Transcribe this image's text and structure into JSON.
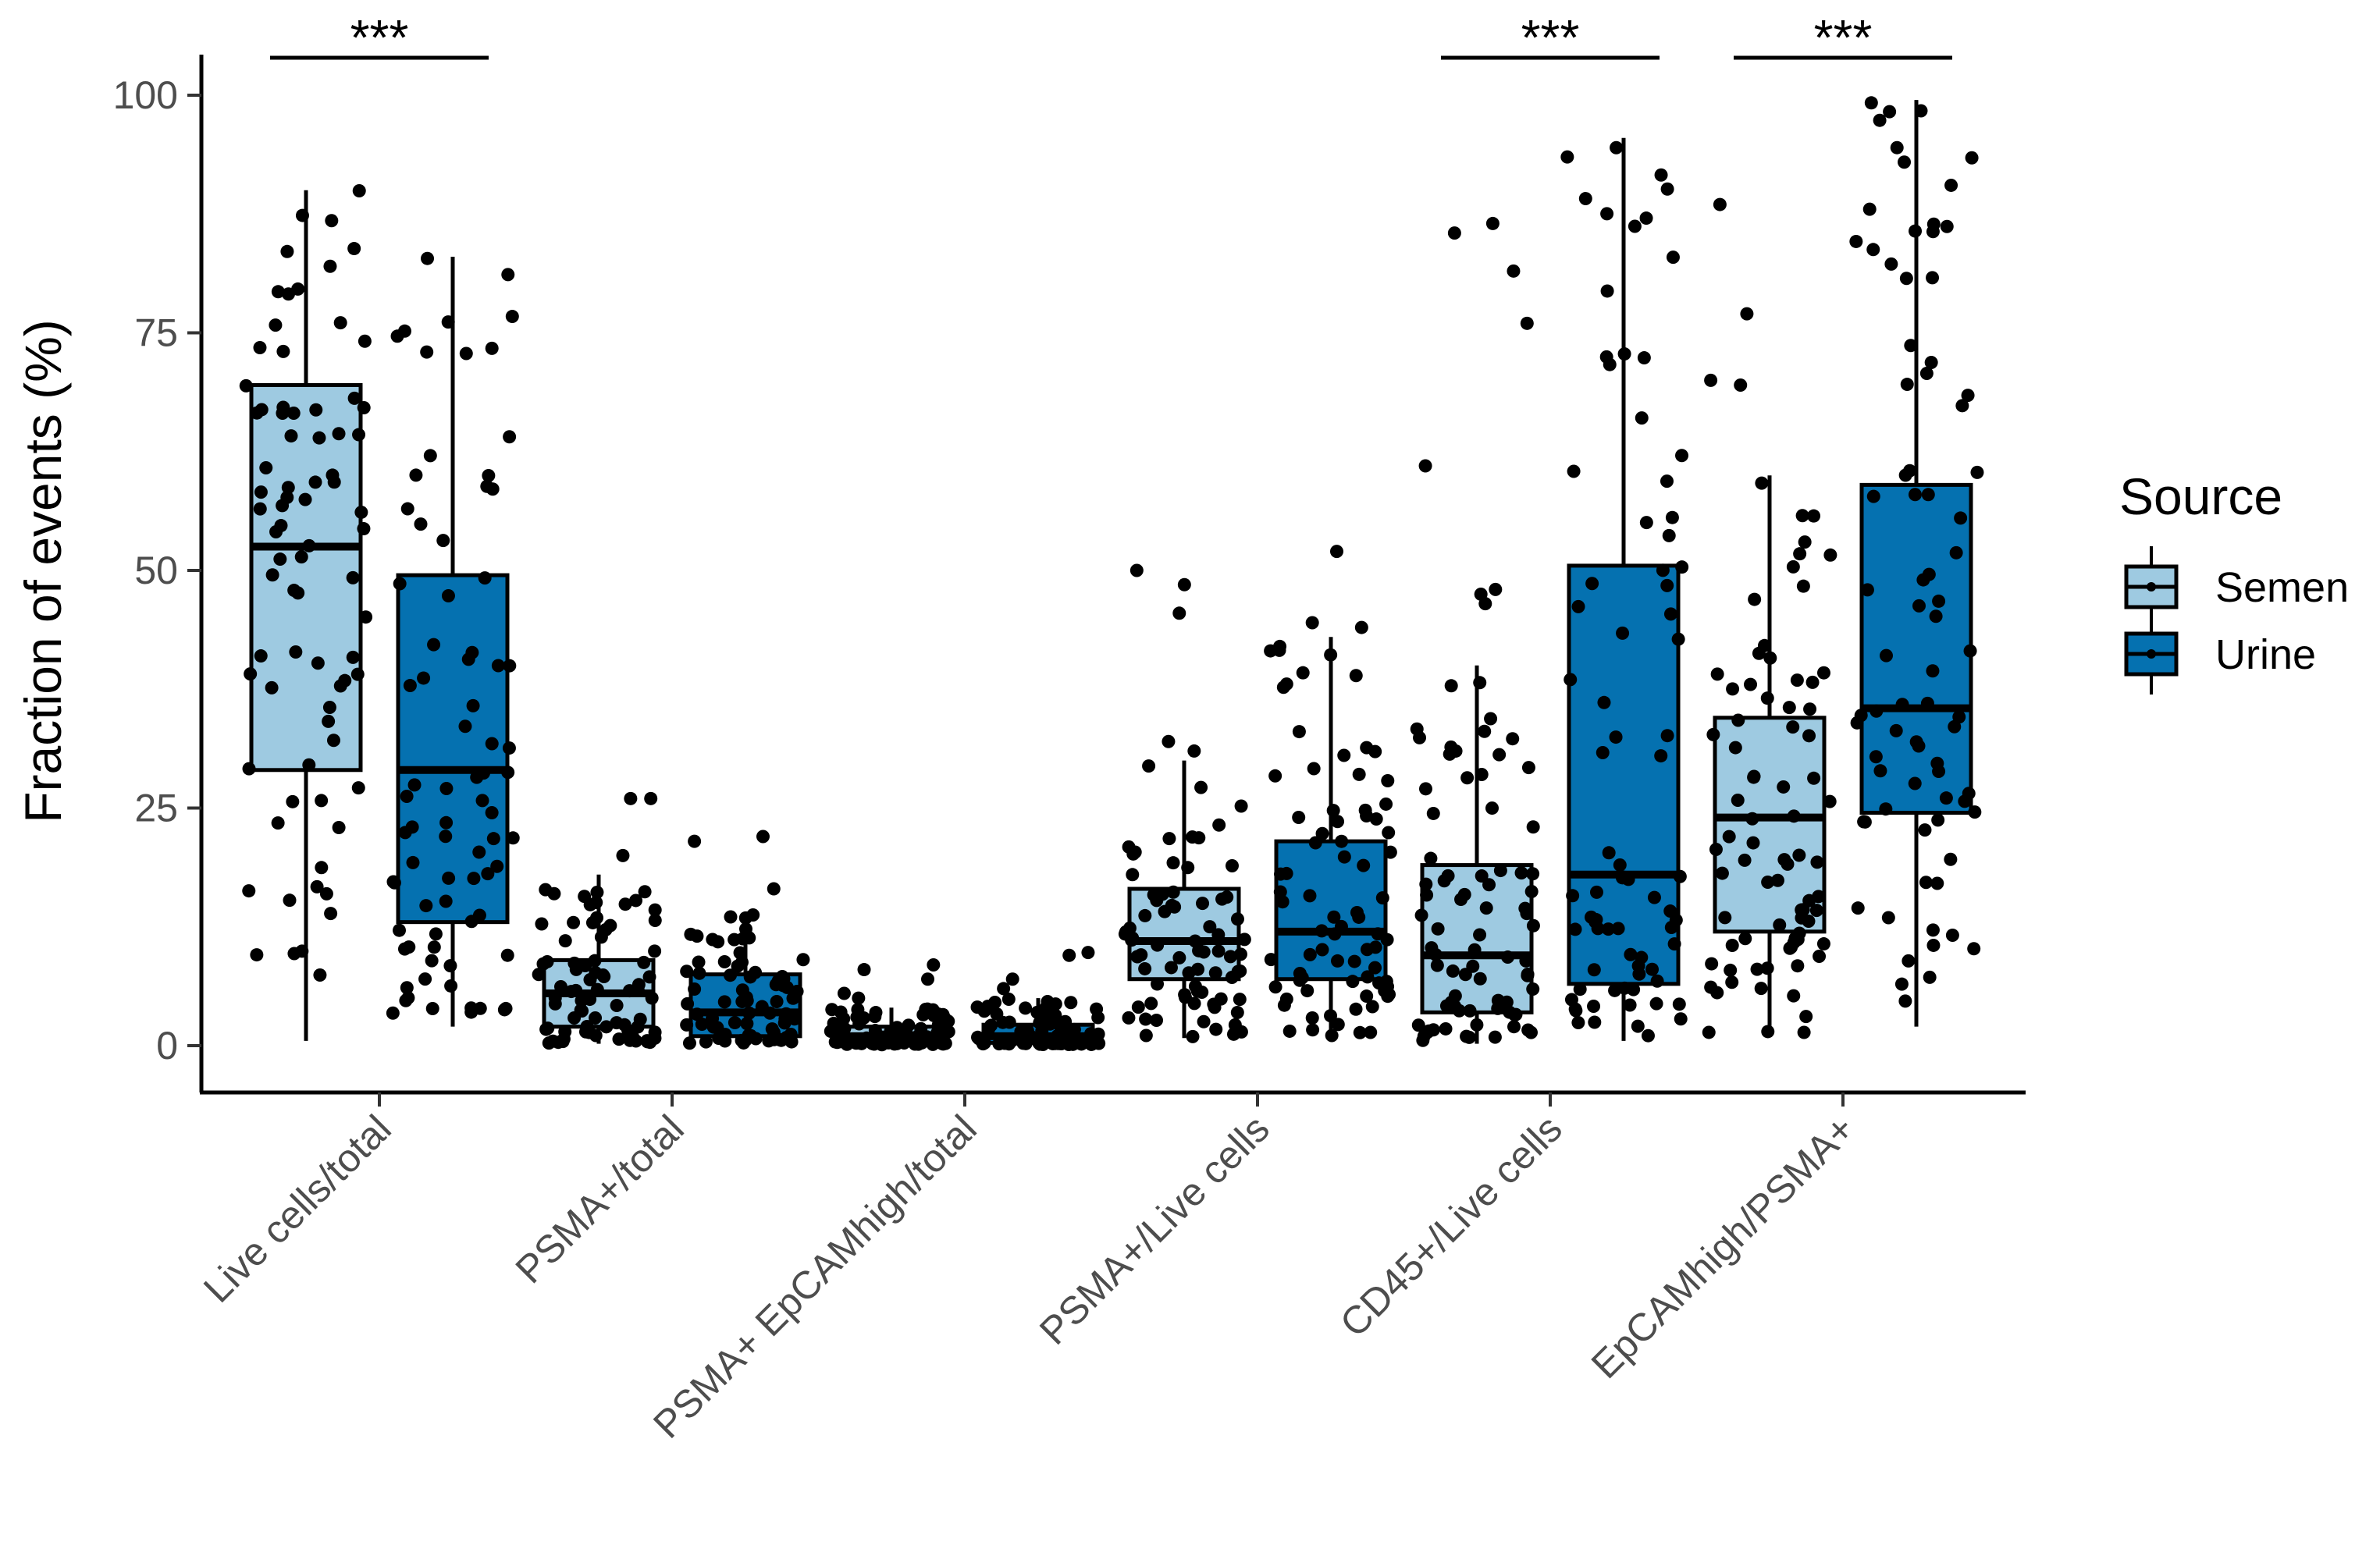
{
  "chart_data": {
    "type": "box",
    "title": "",
    "xlabel": "",
    "ylabel": "Fraction of events (%)",
    "ylim": [
      0,
      100
    ],
    "yticks": [
      0,
      25,
      50,
      75,
      100
    ],
    "grid": false,
    "legend": {
      "title": "Source",
      "placement": "right"
    },
    "categories": [
      "Live cells/total",
      "PSMA+/total",
      "PSMA+ EpCAMhigh/total",
      "PSMA+/Live cells",
      "CD45+/Live cells",
      "EpCAMhigh/PSMA+"
    ],
    "series": [
      {
        "name": "Semen",
        "color": "#9ecae1",
        "boxes": [
          {
            "min": 0.5,
            "q1": 29,
            "median": 52.5,
            "q3": 69.5,
            "max": 90
          },
          {
            "min": 0.2,
            "q1": 2,
            "median": 5.5,
            "q3": 9,
            "max": 18
          },
          {
            "min": 0.1,
            "q1": 0.3,
            "median": 1,
            "q3": 2,
            "max": 4
          },
          {
            "min": 0.8,
            "q1": 7,
            "median": 11,
            "q3": 16.5,
            "max": 30
          },
          {
            "min": 0.2,
            "q1": 3.5,
            "median": 9.5,
            "q3": 19,
            "max": 40
          },
          {
            "min": 1,
            "q1": 12,
            "median": 24,
            "q3": 34.5,
            "max": 60
          }
        ]
      },
      {
        "name": "Urine",
        "color": "#0571b0",
        "boxes": [
          {
            "min": 2,
            "q1": 13,
            "median": 29,
            "q3": 49.5,
            "max": 83
          },
          {
            "min": 0.2,
            "q1": 1,
            "median": 3.5,
            "q3": 7.5,
            "max": 14
          },
          {
            "min": 0.1,
            "q1": 0.3,
            "median": 1,
            "q3": 2.2,
            "max": 5
          },
          {
            "min": 1,
            "q1": 7,
            "median": 12,
            "q3": 21.5,
            "max": 43
          },
          {
            "min": 0.5,
            "q1": 6.5,
            "median": 18,
            "q3": 50.5,
            "max": 95.5
          },
          {
            "min": 2,
            "q1": 24.5,
            "median": 35.5,
            "q3": 59,
            "max": 99.5
          }
        ]
      }
    ],
    "outliers": [
      {
        "category": 0,
        "series": 1,
        "values": []
      },
      {
        "category": 1,
        "series": 0,
        "values": [
          20,
          26,
          26
        ]
      },
      {
        "category": 1,
        "series": 1,
        "values": [
          16.5,
          21.5,
          22
        ]
      },
      {
        "category": 2,
        "series": 0,
        "values": [
          5,
          5.5,
          7,
          8,
          8.5
        ]
      },
      {
        "category": 2,
        "series": 1,
        "values": [
          6,
          7,
          9.5,
          9.8
        ]
      },
      {
        "category": 3,
        "series": 0,
        "values": [
          31,
          32,
          45.5,
          48.5,
          50
        ]
      },
      {
        "category": 3,
        "series": 1,
        "values": [
          44,
          44.5,
          52
        ]
      },
      {
        "category": 4,
        "series": 0,
        "values": [
          46.5,
          47.5,
          48,
          61,
          76,
          81.5,
          85.5,
          86.5
        ]
      },
      {
        "category": 5,
        "series": 0,
        "values": [
          69.5,
          70,
          77,
          88.5
        ]
      }
    ],
    "significance": [
      {
        "category": 0,
        "label": "***"
      },
      {
        "category": 4,
        "label": "***"
      },
      {
        "category": 5,
        "label": "***"
      }
    ]
  }
}
